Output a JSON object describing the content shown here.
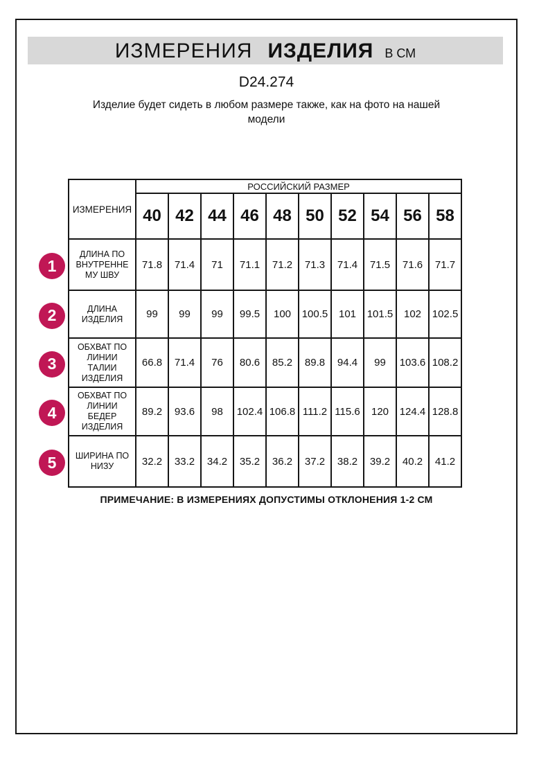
{
  "header": {
    "title_word1": "ИЗМЕРЕНИЯ",
    "title_word2": "ИЗДЕЛИЯ",
    "title_unit": "В СМ",
    "article": "D24.274",
    "subtitle": "Изделие будет сидеть в любом размере также, как на фото на нашей\nмодели"
  },
  "table": {
    "corner_header": "ИЗМЕРЕНИЯ",
    "group_header": "РОССИЙСКИЙ РАЗМЕР",
    "sizes": [
      "40",
      "42",
      "44",
      "46",
      "48",
      "50",
      "52",
      "54",
      "56",
      "58"
    ],
    "rows": [
      {
        "num": "1",
        "label": "ДЛИНА ПО\nВНУТРЕННЕ\nМУ ШВУ",
        "values": [
          "71.8",
          "71.4",
          "71",
          "71.1",
          "71.2",
          "71.3",
          "71.4",
          "71.5",
          "71.6",
          "71.7"
        ]
      },
      {
        "num": "2",
        "label": "ДЛИНА\nИЗДЕЛИЯ",
        "values": [
          "99",
          "99",
          "99",
          "99.5",
          "100",
          "100.5",
          "101",
          "101.5",
          "102",
          "102.5"
        ]
      },
      {
        "num": "3",
        "label": "ОБХВАТ ПО\nЛИНИИ\nТАЛИИ\nИЗДЕЛИЯ",
        "values": [
          "66.8",
          "71.4",
          "76",
          "80.6",
          "85.2",
          "89.8",
          "94.4",
          "99",
          "103.6",
          "108.2"
        ]
      },
      {
        "num": "4",
        "label": "ОБХВАТ ПО\nЛИНИИ\nБЕДЕР\nИЗДЕЛИЯ",
        "values": [
          "89.2",
          "93.6",
          "98",
          "102.4",
          "106.8",
          "111.2",
          "115.6",
          "120",
          "124.4",
          "128.8"
        ]
      },
      {
        "num": "5",
        "label": "ШИРИНА ПО\nНИЗУ",
        "values": [
          "32.2",
          "33.2",
          "34.2",
          "35.2",
          "36.2",
          "37.2",
          "38.2",
          "39.2",
          "40.2",
          "41.2"
        ]
      }
    ]
  },
  "footnote": "ПРИМЕЧАНИЕ: В ИЗМЕРЕНИЯХ ДОПУСТИМЫ ОТКЛОНЕНИЯ 1-2 СМ",
  "colors": {
    "badge": "#c01755",
    "title_bar_bg": "#d8d8d8"
  }
}
